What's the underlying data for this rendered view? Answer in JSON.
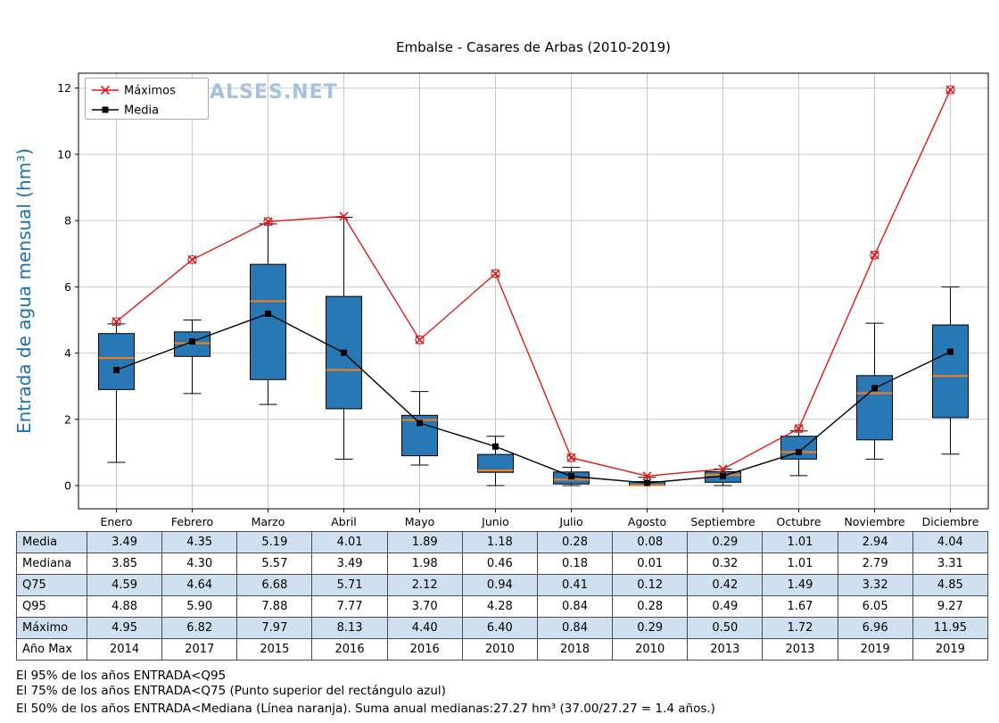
{
  "watermark": "WWW.EMBALSES.NET",
  "colors": {
    "box_fill": "#2878b5",
    "box_edge": "#000000",
    "median_line": "#ff7f0e",
    "flier": "#a03a3a",
    "grid": "#c9c9c9",
    "watermark": "#a5c3de",
    "ylabel": "#1a6fad",
    "table_alt_row": "#cfe0f1",
    "legend_border": "#aaaaaa"
  },
  "chart_data": {
    "type": "boxplot",
    "title": "Embalse - Casares de Arbas (2010-2019)",
    "ylabel": "Entrada de agua mensual (hm³)",
    "xlabel": "",
    "ylim": [
      -0.7,
      12.45
    ],
    "yticks": [
      0,
      2,
      4,
      6,
      8,
      10,
      12
    ],
    "grid": true,
    "legend_position": "upper left",
    "categories": [
      "Enero",
      "Febrero",
      "Marzo",
      "Abril",
      "Mayo",
      "Junio",
      "Julio",
      "Agosto",
      "Septiembre",
      "Octubre",
      "Noviembre",
      "Diciembre"
    ],
    "series": [
      {
        "name": "Máximos",
        "type": "line",
        "marker": "x",
        "color": "#e41616",
        "values": [
          4.95,
          6.82,
          7.97,
          8.13,
          4.4,
          6.4,
          0.84,
          0.29,
          0.5,
          1.72,
          6.96,
          11.95
        ]
      },
      {
        "name": "Media",
        "type": "line",
        "marker": "square",
        "color": "#000000",
        "values": [
          3.49,
          4.35,
          5.19,
          4.01,
          1.89,
          1.18,
          0.28,
          0.08,
          0.29,
          1.01,
          2.94,
          4.04
        ]
      }
    ],
    "box": {
      "q1": [
        2.9,
        3.9,
        3.2,
        2.32,
        0.9,
        0.4,
        0.05,
        0.0,
        0.1,
        0.8,
        1.38,
        2.05
      ],
      "median": [
        3.85,
        4.3,
        5.57,
        3.49,
        1.98,
        0.46,
        0.18,
        0.01,
        0.32,
        1.01,
        2.79,
        3.31
      ],
      "q3": [
        4.59,
        4.64,
        6.68,
        5.71,
        2.12,
        0.94,
        0.41,
        0.12,
        0.42,
        1.49,
        3.32,
        4.85
      ],
      "whisker_low": [
        0.7,
        2.78,
        2.45,
        0.8,
        0.62,
        0.0,
        0.0,
        0.0,
        0.0,
        0.3,
        0.8,
        0.95
      ],
      "whisker_high": [
        4.88,
        5.0,
        7.9,
        8.1,
        2.84,
        1.49,
        0.55,
        0.25,
        0.5,
        1.65,
        4.9,
        6.0
      ]
    }
  },
  "table": {
    "row_labels": [
      "Media",
      "Mediana",
      "Q75",
      "Q95",
      "Máximo",
      "Año Max"
    ],
    "rows": [
      [
        "3.49",
        "4.35",
        "5.19",
        "4.01",
        "1.89",
        "1.18",
        "0.28",
        "0.08",
        "0.29",
        "1.01",
        "2.94",
        "4.04"
      ],
      [
        "3.85",
        "4.30",
        "5.57",
        "3.49",
        "1.98",
        "0.46",
        "0.18",
        "0.01",
        "0.32",
        "1.01",
        "2.79",
        "3.31"
      ],
      [
        "4.59",
        "4.64",
        "6.68",
        "5.71",
        "2.12",
        "0.94",
        "0.41",
        "0.12",
        "0.42",
        "1.49",
        "3.32",
        "4.85"
      ],
      [
        "4.88",
        "5.90",
        "7.88",
        "7.77",
        "3.70",
        "4.28",
        "0.84",
        "0.28",
        "0.49",
        "1.67",
        "6.05",
        "9.27"
      ],
      [
        "4.95",
        "6.82",
        "7.97",
        "8.13",
        "4.40",
        "6.40",
        "0.84",
        "0.29",
        "0.50",
        "1.72",
        "6.96",
        "11.95"
      ],
      [
        "2014",
        "2017",
        "2015",
        "2016",
        "2016",
        "2010",
        "2018",
        "2010",
        "2013",
        "2013",
        "2019",
        "2019"
      ]
    ]
  },
  "footer": [
    "El 95% de los años ENTRADA<Q95",
    "El 75% de los años ENTRADA<Q75 (Punto superior del rectángulo azul)",
    "El 50% de los años ENTRADA<Mediana (Línea naranja). Suma anual medianas:27.27 hm³ (37.00/27.27 = 1.4 años.)"
  ]
}
